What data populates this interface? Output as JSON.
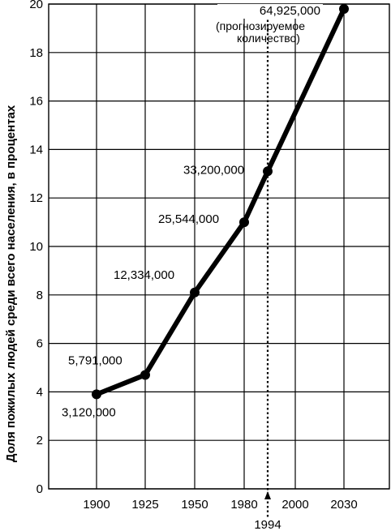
{
  "chart_data": {
    "type": "line",
    "title": "",
    "xlabel": "",
    "ylabel": "Доля пожилых людей среди всего населения, в процентах",
    "ylim": [
      0,
      20
    ],
    "yticks": [
      0,
      2,
      4,
      6,
      8,
      10,
      12,
      14,
      16,
      18,
      20
    ],
    "xticks": [
      "1900",
      "1925",
      "1950",
      "1980",
      "2000",
      "2030"
    ],
    "grid": true,
    "points": [
      {
        "x": 1900,
        "y": 3.9,
        "label": "3,120,000"
      },
      {
        "x": 1925,
        "y": 4.7,
        "label": "5,791,000"
      },
      {
        "x": 1950,
        "y": 8.1,
        "label": "12,334,000"
      },
      {
        "x": 1980,
        "y": 11.0,
        "label": "25,544,000"
      },
      {
        "x": 1994,
        "y": 13.1,
        "label": "33,200,000"
      },
      {
        "x": 2030,
        "y": 19.8,
        "label": "64,925,000"
      }
    ],
    "marker_year": "1994",
    "projection_note": [
      "(прогнозируемое",
      "количество)"
    ]
  }
}
